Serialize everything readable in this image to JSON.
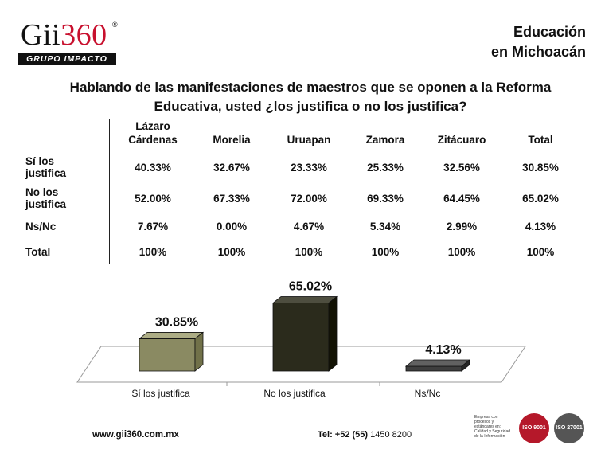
{
  "logo": {
    "word": "Gii",
    "number": "360",
    "reg": "®",
    "tagline": "GRUPO IMPACTO"
  },
  "header": {
    "line1": "Educación",
    "line2": "en Michoacán"
  },
  "question": {
    "line1": "Hablando de las manifestaciones de maestros que se oponen a la Reforma",
    "line2": "Educativa, usted ¿los justifica o no los justifica?"
  },
  "table": {
    "columns": [
      {
        "line1": "Lázaro",
        "line2": "Cárdenas"
      },
      {
        "line1": "Morelia",
        "line2": ""
      },
      {
        "line1": "Uruapan",
        "line2": ""
      },
      {
        "line1": "Zamora",
        "line2": ""
      },
      {
        "line1": "Zitácuaro",
        "line2": ""
      },
      {
        "line1": "Total",
        "line2": ""
      }
    ],
    "rows": [
      {
        "line1": "Sí los",
        "line2": "justifica",
        "values": [
          "40.33%",
          "32.67%",
          "23.33%",
          "25.33%",
          "32.56%",
          "30.85%"
        ]
      },
      {
        "line1": "No los",
        "line2": "justifica",
        "values": [
          "52.00%",
          "67.33%",
          "72.00%",
          "69.33%",
          "64.45%",
          "65.02%"
        ]
      },
      {
        "line1": "Ns/Nc",
        "line2": "",
        "values": [
          "7.67%",
          "0.00%",
          "4.67%",
          "5.34%",
          "2.99%",
          "4.13%"
        ]
      },
      {
        "line1": "Total",
        "line2": "",
        "values": [
          "100%",
          "100%",
          "100%",
          "100%",
          "100%",
          "100%"
        ]
      }
    ]
  },
  "chart_data": {
    "type": "bar",
    "categories": [
      "Sí los justifica",
      "No los justifica",
      "Ns/Nc"
    ],
    "values": [
      30.85,
      65.02,
      4.13
    ],
    "data_labels": [
      "30.85%",
      "65.02%",
      "4.13%"
    ],
    "colors": [
      "#8a8a62",
      "#2b2b1c",
      "#3e3e3e"
    ],
    "ylim": [
      0,
      70
    ],
    "grid": false,
    "legend": "none"
  },
  "footer": {
    "website": "www.gii360.com.mx",
    "tel_label": "Tel: +52 (55)",
    "tel_number": "1450 8200"
  },
  "certification": {
    "text": "Empresa con procesos y estándares en: Calidad y Seguridad de la Información",
    "seal1": "ISO 9001",
    "seal2": "ISO 27001"
  }
}
